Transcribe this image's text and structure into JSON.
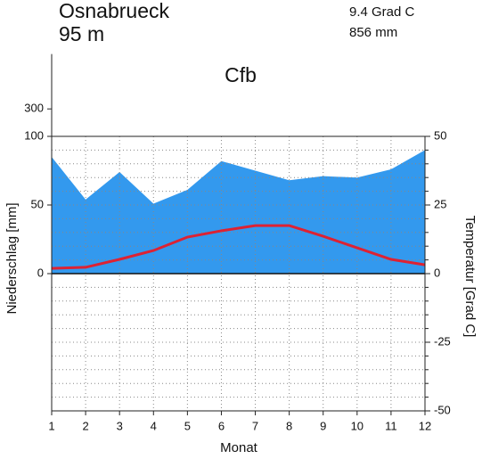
{
  "chart_data": {
    "type": "climate",
    "station": "Osnabrueck",
    "elevation": "95 m",
    "mean_temperature": "9.4 Grad C",
    "annual_precipitation": "856 mm",
    "climate_class": "Cfb",
    "xlabel": "Monat",
    "ylabel": "Niederschlag [mm]",
    "y2label": "Temperatur [Grad C]",
    "x": [
      1,
      2,
      3,
      4,
      5,
      6,
      7,
      8,
      9,
      10,
      11,
      12
    ],
    "xlim": [
      1,
      12
    ],
    "xticks": [
      1,
      2,
      3,
      4,
      5,
      6,
      7,
      8,
      9,
      10,
      11,
      12
    ],
    "series": [
      {
        "name": "Niederschlag",
        "color": "#3399ee",
        "values": [
          85,
          54,
          74,
          51,
          61,
          82,
          75,
          68,
          71,
          70,
          76,
          90
        ]
      },
      {
        "name": "Temperatur",
        "color": "#dd2233",
        "axis": "y2",
        "values": [
          1.9,
          2.3,
          5.2,
          8.4,
          13.3,
          15.6,
          17.5,
          17.5,
          13.6,
          9.4,
          5.2,
          3.2
        ]
      }
    ],
    "ylim": [
      -100,
      100
    ],
    "yticks": [
      0,
      50,
      100
    ],
    "ylim_upper": [
      100,
      700
    ],
    "yticks_upper": [
      300
    ],
    "y2lim": [
      -50,
      50
    ],
    "y2ticks": [
      -50,
      -25,
      0,
      25,
      50
    ],
    "y2minor": [
      -45,
      -40,
      -35,
      -30,
      -20,
      -15,
      -10,
      -5,
      5,
      10,
      15,
      20,
      30,
      35,
      40,
      45
    ],
    "grid": true
  }
}
